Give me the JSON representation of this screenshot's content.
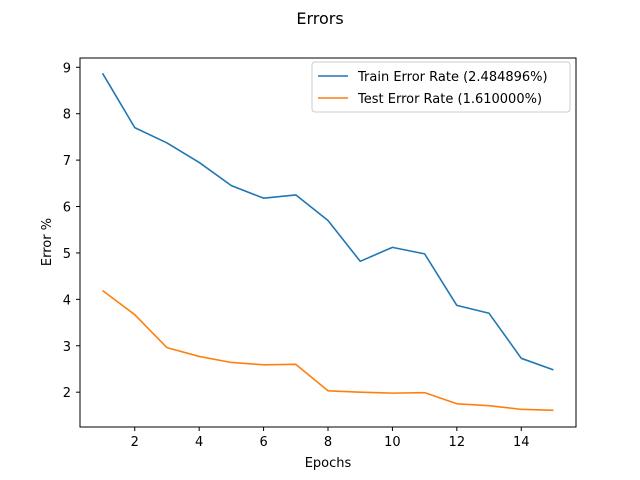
{
  "chart_data": {
    "type": "line",
    "title": "Errors",
    "xlabel": "Epochs",
    "ylabel": "Error %",
    "xlim": [
      0.3,
      15.7
    ],
    "ylim": [
      1.25,
      9.2
    ],
    "xticks": [
      2,
      4,
      6,
      8,
      10,
      12,
      14
    ],
    "yticks": [
      2,
      3,
      4,
      5,
      6,
      7,
      8,
      9
    ],
    "grid": false,
    "legend_position": "top-right",
    "x": [
      1,
      2,
      3,
      4,
      5,
      6,
      7,
      8,
      9,
      10,
      11,
      12,
      13,
      14,
      15
    ],
    "series": [
      {
        "name": "Train Error Rate (2.484896%)",
        "color": "#1f77b4",
        "values": [
          8.87,
          7.7,
          7.37,
          6.95,
          6.45,
          6.18,
          6.25,
          5.7,
          4.82,
          5.12,
          4.98,
          3.87,
          3.7,
          2.73,
          2.48
        ]
      },
      {
        "name": "Test Error Rate (1.610000%)",
        "color": "#ff7f0e",
        "values": [
          4.19,
          3.67,
          2.96,
          2.77,
          2.64,
          2.59,
          2.6,
          2.03,
          2.0,
          1.98,
          1.99,
          1.75,
          1.71,
          1.63,
          1.61
        ]
      }
    ]
  }
}
